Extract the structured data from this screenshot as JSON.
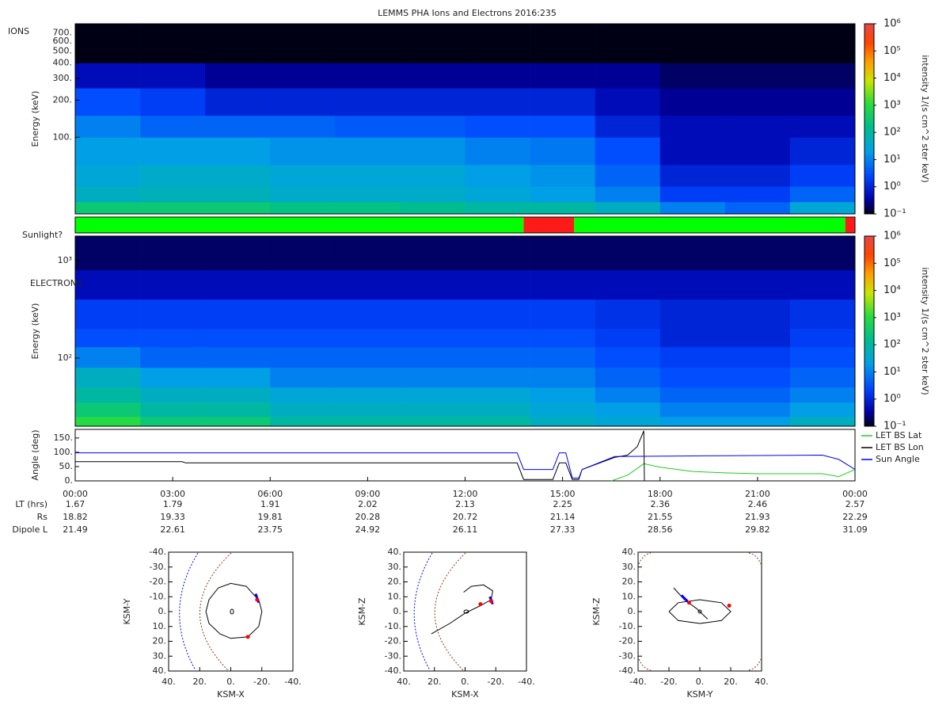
{
  "chart_data": [
    {
      "type": "heatmap",
      "title": "LEMMS PHA Ions and Electrons  2016:235",
      "label": "IONS",
      "ylabel": "Energy (keV)",
      "xlim": [
        0,
        24
      ],
      "ylim": [
        24,
        830
      ],
      "log_y": true,
      "yticks": [
        {
          "value": 100,
          "label": "100."
        },
        {
          "value": 200,
          "label": "200."
        },
        {
          "value": 300,
          "label": "300."
        },
        {
          "value": 400,
          "label": "400."
        },
        {
          "value": 500,
          "label": "500."
        },
        {
          "value": 600,
          "label": "600."
        },
        {
          "value": 700,
          "label": "700."
        }
      ],
      "xbins": [
        0,
        2,
        4,
        6,
        8,
        10,
        12,
        14,
        16,
        18,
        20,
        22,
        24
      ],
      "ybins": [
        24,
        30,
        40,
        60,
        100,
        150,
        250,
        400,
        830
      ],
      "z": [
        [
          300,
          300,
          300,
          200,
          200,
          150,
          100,
          100,
          50,
          10,
          5,
          30
        ],
        [
          50,
          60,
          60,
          40,
          40,
          40,
          30,
          20,
          10,
          2,
          2,
          5
        ],
        [
          30,
          40,
          40,
          30,
          30,
          30,
          20,
          15,
          5,
          1,
          1,
          2
        ],
        [
          20,
          20,
          20,
          15,
          15,
          15,
          10,
          8,
          3,
          0.5,
          0.5,
          1
        ],
        [
          10,
          5,
          5,
          5,
          4,
          4,
          3,
          3,
          1,
          0.5,
          0.5,
          0.5
        ],
        [
          3,
          2,
          1,
          1,
          1,
          1,
          1,
          1,
          0.5,
          0.3,
          0.3,
          0.3
        ],
        [
          0.5,
          0.5,
          0.3,
          0.3,
          0.3,
          0.3,
          0.3,
          0.3,
          0.3,
          0.2,
          0.2,
          0.2
        ],
        [
          0.1,
          0.1,
          0.1,
          0.1,
          0.1,
          0.1,
          0.1,
          0.1,
          0.1,
          0.1,
          0.1,
          0.1
        ]
      ],
      "colorbar": {
        "label": "intensity 1/(s cm^2 ster keV)",
        "lim": [
          0.1,
          1000000
        ],
        "ticks": [
          {
            "value": 0.1,
            "label": "10⁻¹"
          },
          {
            "value": 1,
            "label": "10⁰"
          },
          {
            "value": 10,
            "label": "10¹"
          },
          {
            "value": 100,
            "label": "10²"
          },
          {
            "value": 1000,
            "label": "10³"
          },
          {
            "value": 10000,
            "label": "10⁴"
          },
          {
            "value": 100000,
            "label": "10⁵"
          },
          {
            "value": 1000000,
            "label": "10⁶"
          }
        ]
      }
    },
    {
      "type": "timeline",
      "label": "Sunlight?",
      "xlim": [
        0,
        24
      ],
      "segments": [
        {
          "start": 0,
          "end": 13.8,
          "color": "#00ff00"
        },
        {
          "start": 13.8,
          "end": 15.35,
          "color": "#ff1a1a"
        },
        {
          "start": 15.35,
          "end": 23.7,
          "color": "#00ff00"
        },
        {
          "start": 23.7,
          "end": 24,
          "color": "#ff1a1a"
        }
      ]
    },
    {
      "type": "heatmap",
      "label": "ELECTRONS",
      "ylabel": "Energy (keV)",
      "xlim": [
        0,
        24
      ],
      "ylim": [
        20,
        1780
      ],
      "log_y": true,
      "yticks": [
        {
          "value": 100,
          "label": "10²"
        },
        {
          "value": 1000,
          "label": "10³"
        }
      ],
      "xbins": [
        0,
        2,
        4,
        6,
        8,
        10,
        12,
        14,
        16,
        18,
        20,
        22,
        24
      ],
      "ybins": [
        20,
        25,
        35,
        50,
        80,
        130,
        200,
        400,
        800,
        1780
      ],
      "z": [
        [
          1000,
          300,
          300,
          100,
          100,
          100,
          100,
          50,
          30,
          20,
          20,
          50
        ],
        [
          300,
          100,
          100,
          50,
          50,
          50,
          50,
          30,
          20,
          10,
          10,
          20
        ],
        [
          100,
          50,
          50,
          30,
          30,
          30,
          30,
          20,
          10,
          5,
          5,
          10
        ],
        [
          50,
          20,
          20,
          10,
          10,
          10,
          10,
          10,
          5,
          3,
          3,
          5
        ],
        [
          10,
          5,
          5,
          5,
          5,
          5,
          5,
          5,
          3,
          2,
          2,
          3
        ],
        [
          3,
          3,
          3,
          3,
          3,
          3,
          3,
          3,
          2,
          1,
          1,
          2
        ],
        [
          2,
          2,
          2,
          2,
          2,
          2,
          2,
          2,
          1.5,
          1,
          1,
          1.5
        ],
        [
          0.5,
          0.5,
          0.5,
          0.5,
          0.5,
          0.5,
          0.5,
          0.5,
          0.5,
          0.5,
          0.5,
          0.5
        ],
        [
          0.2,
          0.2,
          0.2,
          0.2,
          0.2,
          0.2,
          0.2,
          0.2,
          0.2,
          0.2,
          0.2,
          0.2
        ]
      ],
      "colorbar": {
        "label": "intensity 1/(s cm^2 ster keV)",
        "lim": [
          0.1,
          1000000
        ],
        "ticks": [
          {
            "value": 0.1,
            "label": "10⁻¹"
          },
          {
            "value": 1,
            "label": "10⁰"
          },
          {
            "value": 10,
            "label": "10¹"
          },
          {
            "value": 100,
            "label": "10²"
          },
          {
            "value": 1000,
            "label": "10³"
          },
          {
            "value": 10000,
            "label": "10⁴"
          },
          {
            "value": 100000,
            "label": "10⁵"
          },
          {
            "value": 1000000,
            "label": "10⁶"
          }
        ]
      }
    },
    {
      "type": "line",
      "ylabel": "Angle (deg)",
      "xlim": [
        0,
        24
      ],
      "ylim": [
        0,
        180
      ],
      "legend": "right",
      "xticks": [
        {
          "value": 0,
          "label": "00:00"
        },
        {
          "value": 3,
          "label": "03:00"
        },
        {
          "value": 6,
          "label": "06:00"
        },
        {
          "value": 9,
          "label": "09:00"
        },
        {
          "value": 12,
          "label": "12:00"
        },
        {
          "value": 15,
          "label": "15:00"
        },
        {
          "value": 18,
          "label": "18:00"
        },
        {
          "value": 21,
          "label": "21:00"
        },
        {
          "value": 24,
          "label": "00:00"
        }
      ],
      "yticks": [
        {
          "value": 0,
          "label": "0."
        },
        {
          "value": 50,
          "label": "50."
        },
        {
          "value": 100,
          "label": "100."
        },
        {
          "value": 150,
          "label": "150."
        }
      ],
      "series": [
        {
          "name": "LET BS Lat",
          "color": "#22cc22",
          "x": [
            16.5,
            17.0,
            17.5,
            18.0,
            19.0,
            20.0,
            21.0,
            22.0,
            23.0,
            23.5,
            24.0
          ],
          "values": [
            0,
            20,
            60,
            48,
            33,
            28,
            25,
            25,
            25,
            15,
            40
          ]
        },
        {
          "name": "LET BS Lon",
          "color": "#000000",
          "x": [
            0,
            3.3,
            3.4,
            13.6,
            13.8,
            14.7,
            14.9,
            15.1,
            15.3,
            15.5,
            15.6,
            16.6,
            17.0,
            17.3,
            17.5,
            17.52
          ],
          "values": [
            67,
            67,
            63,
            63,
            5,
            5,
            63,
            63,
            5,
            5,
            40,
            82,
            90,
            120,
            175,
            0
          ]
        },
        {
          "name": "Sun Angle",
          "color": "#0000ff",
          "x": [
            0,
            13.6,
            13.8,
            14.7,
            14.9,
            15.1,
            15.3,
            15.5,
            15.6,
            16.6,
            20.0,
            23.0,
            23.5,
            24.0
          ],
          "values": [
            98,
            98,
            40,
            40,
            98,
            98,
            10,
            10,
            40,
            85,
            88,
            90,
            75,
            40
          ]
        }
      ]
    },
    {
      "type": "table",
      "rows": [
        {
          "label": "LT (hrs)",
          "values": [
            1.67,
            1.79,
            1.91,
            2.02,
            2.13,
            2.25,
            2.36,
            2.46,
            2.57
          ]
        },
        {
          "label": "Rs",
          "values": [
            18.82,
            19.33,
            19.81,
            20.28,
            20.72,
            21.14,
            21.55,
            21.93,
            22.29
          ]
        },
        {
          "label": "Dipole L",
          "values": [
            21.49,
            22.61,
            23.75,
            24.92,
            26.11,
            27.33,
            28.56,
            29.82,
            31.09
          ]
        }
      ]
    },
    {
      "type": "line",
      "xlabel": "KSM-X",
      "ylabel": "KSM-Y",
      "xlim": [
        40,
        -40
      ],
      "ylim": [
        40,
        -40
      ],
      "xticks": [
        {
          "value": 40,
          "label": "40."
        },
        {
          "value": 20,
          "label": "20."
        },
        {
          "value": 0,
          "label": "0."
        },
        {
          "value": -20,
          "label": "-20."
        },
        {
          "value": -40,
          "label": "-40."
        }
      ],
      "yticks": [
        {
          "value": -40,
          "label": "-40."
        },
        {
          "value": -30,
          "label": "-30."
        },
        {
          "value": -20,
          "label": "-20."
        },
        {
          "value": -10,
          "label": "-10."
        },
        {
          "value": 0,
          "label": "0."
        },
        {
          "value": 10,
          "label": "10."
        },
        {
          "value": 20,
          "label": "20."
        },
        {
          "value": 30,
          "label": "30."
        },
        {
          "value": 40,
          "label": "40."
        }
      ],
      "series": [
        {
          "color": "#000000",
          "x": [
            -16,
            -10,
            0,
            8,
            14,
            16,
            14,
            7,
            0,
            -11,
            -18,
            -20,
            -18
          ],
          "values": [
            -10,
            -17,
            -19,
            -16,
            -8,
            0,
            8,
            15,
            18,
            17,
            10,
            0,
            -8
          ]
        },
        {
          "color": "#0000ff",
          "x": [
            -16,
            -17,
            -18
          ],
          "values": [
            -12,
            -9,
            -6
          ]
        },
        {
          "color": "#ff0000",
          "marker": "dot",
          "x": [
            -17,
            -11
          ],
          "values": [
            -8,
            17
          ]
        }
      ]
    },
    {
      "type": "line",
      "xlabel": "KSM-X",
      "ylabel": "KSM-Z",
      "xlim": [
        40,
        -40
      ],
      "ylim": [
        -40,
        40
      ],
      "xticks": [
        {
          "value": 40,
          "label": "40."
        },
        {
          "value": 20,
          "label": "20."
        },
        {
          "value": 0,
          "label": "0."
        },
        {
          "value": -20,
          "label": "-20."
        },
        {
          "value": -40,
          "label": "-40."
        }
      ],
      "yticks": [
        {
          "value": 40,
          "label": "40."
        },
        {
          "value": 30,
          "label": "30."
        },
        {
          "value": 20,
          "label": "20."
        },
        {
          "value": 10,
          "label": "10."
        },
        {
          "value": 0,
          "label": "0."
        },
        {
          "value": -10,
          "label": "-10."
        },
        {
          "value": -20,
          "label": "-20."
        },
        {
          "value": -30,
          "label": "-30."
        },
        {
          "value": -40,
          "label": "-40."
        }
      ],
      "series": [
        {
          "color": "#000000",
          "x": [
            22,
            10,
            0,
            -10,
            -17,
            -18,
            -12,
            -4,
            1
          ],
          "values": [
            -15,
            -8,
            -1,
            4,
            8,
            14,
            18,
            17,
            13
          ]
        },
        {
          "color": "#0000ff",
          "x": [
            -16,
            -17,
            -18
          ],
          "values": [
            10,
            8,
            5
          ]
        },
        {
          "color": "#ff0000",
          "marker": "dot",
          "x": [
            -17,
            -10
          ],
          "values": [
            7,
            5
          ]
        }
      ]
    },
    {
      "type": "line",
      "xlabel": "KSM-Y",
      "ylabel": "KSM-Z",
      "xlim": [
        -40,
        40
      ],
      "ylim": [
        -40,
        40
      ],
      "xticks": [
        {
          "value": -40,
          "label": "-40."
        },
        {
          "value": -20,
          "label": "-20."
        },
        {
          "value": 0,
          "label": "0."
        },
        {
          "value": 20,
          "label": "20."
        },
        {
          "value": 40,
          "label": "40."
        }
      ],
      "yticks": [
        {
          "value": 40,
          "label": "40."
        },
        {
          "value": 30,
          "label": "30."
        },
        {
          "value": 20,
          "label": "20."
        },
        {
          "value": 10,
          "label": "10."
        },
        {
          "value": 0,
          "label": "0."
        },
        {
          "value": -10,
          "label": "-10."
        },
        {
          "value": -20,
          "label": "-20."
        },
        {
          "value": -30,
          "label": "-30."
        },
        {
          "value": -40,
          "label": "-40."
        }
      ],
      "series": [
        {
          "color": "#000000",
          "x": [
            -20,
            -14,
            0,
            14,
            20,
            14,
            0,
            -14,
            -20
          ],
          "values": [
            0,
            6,
            8,
            6,
            0,
            -6,
            -8,
            -6,
            0
          ]
        },
        {
          "color": "#000000",
          "x": [
            -17,
            -10,
            -2,
            5
          ],
          "values": [
            16,
            8,
            2,
            -5
          ]
        },
        {
          "color": "#0000ff",
          "x": [
            -12,
            -10,
            -8
          ],
          "values": [
            11,
            9,
            7
          ]
        },
        {
          "color": "#ff0000",
          "marker": "dot",
          "x": [
            -7,
            19
          ],
          "values": [
            6,
            4
          ]
        }
      ]
    }
  ]
}
